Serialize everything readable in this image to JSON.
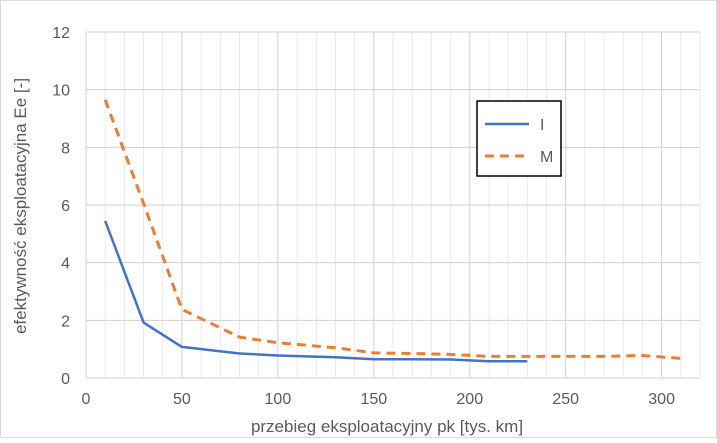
{
  "chart_data": {
    "type": "line",
    "title": "",
    "xlabel": "przebieg eksploatacyjny pk [tys. km]",
    "ylabel": "efektywność eksploatacyjna Ee [-]",
    "xlim": [
      0,
      320
    ],
    "ylim": [
      0,
      12
    ],
    "x_ticks": [
      0,
      50,
      100,
      150,
      200,
      250,
      300
    ],
    "y_ticks": [
      0,
      2,
      4,
      6,
      8,
      10,
      12
    ],
    "x_tick_labels": [
      "0",
      "50",
      "100",
      "150",
      "200",
      "250",
      "300"
    ],
    "y_tick_labels": [
      "0",
      "2",
      "4",
      "6",
      "8",
      "10",
      "12"
    ],
    "x_minor_step": 10,
    "grid": true,
    "legend_position": "upper-right inside plot, boxed",
    "series": [
      {
        "name": "I",
        "color": "#4472C4",
        "style": "solid",
        "x": [
          10,
          30,
          50,
          80,
          100,
          130,
          150,
          170,
          190,
          210,
          230
        ],
        "y": [
          5.45,
          1.92,
          1.08,
          0.85,
          0.78,
          0.72,
          0.65,
          0.65,
          0.64,
          0.58,
          0.58
        ]
      },
      {
        "name": "M",
        "color": "#ED7D31",
        "style": "dashed",
        "x": [
          10,
          30,
          50,
          80,
          100,
          130,
          150,
          170,
          190,
          210,
          230,
          250,
          270,
          290,
          310
        ],
        "y": [
          9.65,
          6.05,
          2.38,
          1.42,
          1.22,
          1.05,
          0.87,
          0.85,
          0.82,
          0.75,
          0.75,
          0.75,
          0.75,
          0.78,
          0.68
        ]
      }
    ]
  }
}
